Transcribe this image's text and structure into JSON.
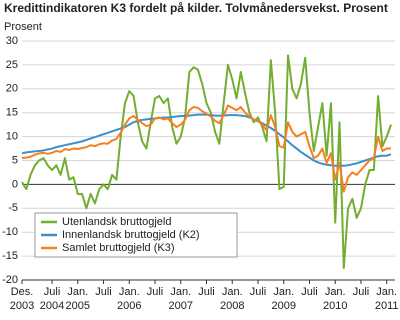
{
  "chart_data": {
    "type": "line",
    "title": "Kredittindikatoren K3 fordelt på kilder. Tolvmånedersvekst. Prosent",
    "y_label": "Prosent",
    "x": [
      "2003-12",
      "2004-01",
      "2004-02",
      "2004-03",
      "2004-04",
      "2004-05",
      "2004-06",
      "2004-07",
      "2004-08",
      "2004-09",
      "2004-10",
      "2004-11",
      "2004-12",
      "2005-01",
      "2005-02",
      "2005-03",
      "2005-04",
      "2005-05",
      "2005-06",
      "2005-07",
      "2005-08",
      "2005-09",
      "2005-10",
      "2005-11",
      "2005-12",
      "2006-01",
      "2006-02",
      "2006-03",
      "2006-04",
      "2006-05",
      "2006-06",
      "2006-07",
      "2006-08",
      "2006-09",
      "2006-10",
      "2006-11",
      "2006-12",
      "2007-01",
      "2007-02",
      "2007-03",
      "2007-04",
      "2007-05",
      "2007-06",
      "2007-07",
      "2007-08",
      "2007-09",
      "2007-10",
      "2007-11",
      "2007-12",
      "2008-01",
      "2008-02",
      "2008-03",
      "2008-04",
      "2008-05",
      "2008-06",
      "2008-07",
      "2008-08",
      "2008-09",
      "2008-10",
      "2008-11",
      "2008-12",
      "2009-01",
      "2009-02",
      "2009-03",
      "2009-04",
      "2009-05",
      "2009-06",
      "2009-07",
      "2009-08",
      "2009-09",
      "2009-10",
      "2009-11",
      "2009-12",
      "2010-01",
      "2010-02",
      "2010-03",
      "2010-04",
      "2010-05",
      "2010-06",
      "2010-07",
      "2010-08",
      "2010-09",
      "2010-10",
      "2010-11",
      "2010-12",
      "2011-01",
      "2011-02"
    ],
    "series": [
      {
        "name": "Utenlandsk bruttogjeld",
        "color": "#72ae2f",
        "values": [
          0.5,
          -1,
          2,
          4,
          5,
          5.5,
          4,
          3,
          4,
          2,
          5.5,
          1,
          1.5,
          -2,
          -2,
          -5,
          -2,
          -4,
          -1,
          0,
          -1,
          2,
          1,
          10,
          17,
          19.5,
          18.5,
          13,
          9,
          7.5,
          13,
          18,
          18.5,
          17,
          18,
          12,
          8.5,
          10,
          14,
          23.5,
          24.5,
          24,
          21,
          17,
          15,
          11,
          8.5,
          17,
          25,
          22,
          18,
          23.5,
          19,
          15,
          13,
          14,
          12,
          9,
          26,
          15,
          -1,
          -0.5,
          27,
          20,
          18,
          21,
          26.5,
          15,
          7,
          12,
          17,
          6,
          17,
          -8,
          13,
          -17.5,
          -5,
          -3,
          -7,
          -5,
          0,
          3,
          3,
          18.5,
          8,
          10,
          12.5
        ]
      },
      {
        "name": "Innenlandsk bruttogjeld (K2)",
        "color": "#3f8fc9",
        "values": [
          6.5,
          6.7,
          6.8,
          6.9,
          7,
          7.1,
          7.3,
          7.5,
          7.8,
          8,
          8.2,
          8.4,
          8.6,
          8.8,
          9,
          9.3,
          9.6,
          9.9,
          10.2,
          10.5,
          10.8,
          11.1,
          11.4,
          11.7,
          12,
          12.5,
          13,
          13.3,
          13.5,
          13.6,
          13.7,
          13.8,
          13.9,
          14,
          14,
          14.1,
          14.2,
          14.3,
          14.3,
          14.4,
          14.5,
          14.6,
          14.6,
          14.6,
          14.5,
          14.4,
          14.4,
          14.4,
          14.5,
          14.5,
          14.5,
          14.4,
          14.3,
          14,
          13.6,
          13.2,
          12.8,
          12.3,
          11.8,
          11.2,
          10.5,
          9.8,
          9,
          8.2,
          7.5,
          6.8,
          6.2,
          5.6,
          5,
          4.6,
          4.3,
          4.1,
          4,
          3.9,
          3.9,
          3.9,
          4,
          4.2,
          4.4,
          4.7,
          5,
          5.3,
          5.6,
          5.9,
          6,
          6,
          6.3
        ]
      },
      {
        "name": "Samlet bruttogjeld (K3)",
        "color": "#f4811f",
        "values": [
          5.5,
          5.6,
          5.8,
          6.2,
          6.5,
          6.6,
          6.4,
          6.6,
          7,
          6.8,
          7.4,
          7.2,
          7.5,
          7.4,
          7.6,
          7.8,
          8.2,
          8,
          8.4,
          8.6,
          8.5,
          9.2,
          9.5,
          10.8,
          12.5,
          13.8,
          14.3,
          13.5,
          12.8,
          12.2,
          12.5,
          13.8,
          14,
          13.6,
          13.8,
          12.8,
          12,
          12.5,
          13.5,
          15.5,
          16.2,
          16,
          15.3,
          14.8,
          14.2,
          13.3,
          12.8,
          14.5,
          16.5,
          16,
          15.5,
          16.2,
          15,
          14.2,
          13.5,
          13.4,
          12.5,
          11.3,
          14.5,
          12,
          8,
          7.7,
          13,
          11,
          10,
          10.5,
          11,
          8,
          5.5,
          6,
          7.5,
          4.5,
          6.5,
          1,
          4.5,
          -1.5,
          1.5,
          2.5,
          2,
          3,
          4,
          5,
          5.5,
          10,
          7,
          7.5,
          7.5
        ]
      }
    ],
    "ylim": [
      -20,
      30
    ],
    "yticks": [
      -20,
      -15,
      -10,
      -5,
      0,
      5,
      10,
      15,
      20,
      25,
      30
    ],
    "grid": true,
    "xticks": [
      {
        "value": "2003-12",
        "label": "Des.",
        "year": "2003"
      },
      {
        "value": "2004-07",
        "label": "Juli",
        "year": "2004"
      },
      {
        "value": "2005-01",
        "label": "Jan.",
        "year": "2005"
      },
      {
        "value": "2005-07",
        "label": "Juli"
      },
      {
        "value": "2006-01",
        "label": "Jan.",
        "year": "2006"
      },
      {
        "value": "2006-07",
        "label": "Juli"
      },
      {
        "value": "2007-01",
        "label": "Jan.",
        "year": "2007"
      },
      {
        "value": "2007-07",
        "label": "Juli"
      },
      {
        "value": "2008-01",
        "label": "Jan.",
        "year": "2008"
      },
      {
        "value": "2008-07",
        "label": "Juli"
      },
      {
        "value": "2009-01",
        "label": "Jan.",
        "year": "2009"
      },
      {
        "value": "2009-07",
        "label": "Juli"
      },
      {
        "value": "2010-01",
        "label": "Jan.",
        "year": "2010"
      },
      {
        "value": "2010-07",
        "label": "Juli"
      },
      {
        "value": "2011-01",
        "label": "Jan.",
        "year": "2011"
      }
    ],
    "legend": "lower-left"
  }
}
